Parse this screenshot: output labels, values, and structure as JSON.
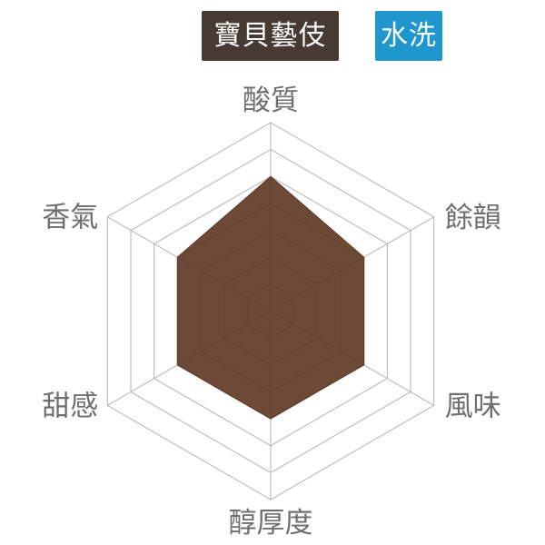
{
  "page": {
    "background": "#FFFFFF"
  },
  "badges": [
    {
      "label": "寶貝藝伎",
      "bg": "#463A32",
      "text_color": "#FFFFFF"
    },
    {
      "label": "水洗",
      "bg": "#1F96CE",
      "text_color": "#FFFFFF"
    }
  ],
  "chart_data": {
    "type": "radar",
    "title": "",
    "categories": [
      "酸質",
      "餘韻",
      "風味",
      "醇厚度",
      "甜感",
      "香氣"
    ],
    "series": [
      {
        "name": "寶貝藝伎 水洗",
        "values": [
          5,
          4,
          4,
          4,
          4,
          4
        ]
      }
    ],
    "scale_max": 7,
    "rings": 7,
    "grid": true,
    "legend_position": "top",
    "fill_color": "#59311B",
    "fill_opacity": 0.88,
    "grid_color": "#B3B3B3",
    "label_color": "#6F6F6F"
  }
}
